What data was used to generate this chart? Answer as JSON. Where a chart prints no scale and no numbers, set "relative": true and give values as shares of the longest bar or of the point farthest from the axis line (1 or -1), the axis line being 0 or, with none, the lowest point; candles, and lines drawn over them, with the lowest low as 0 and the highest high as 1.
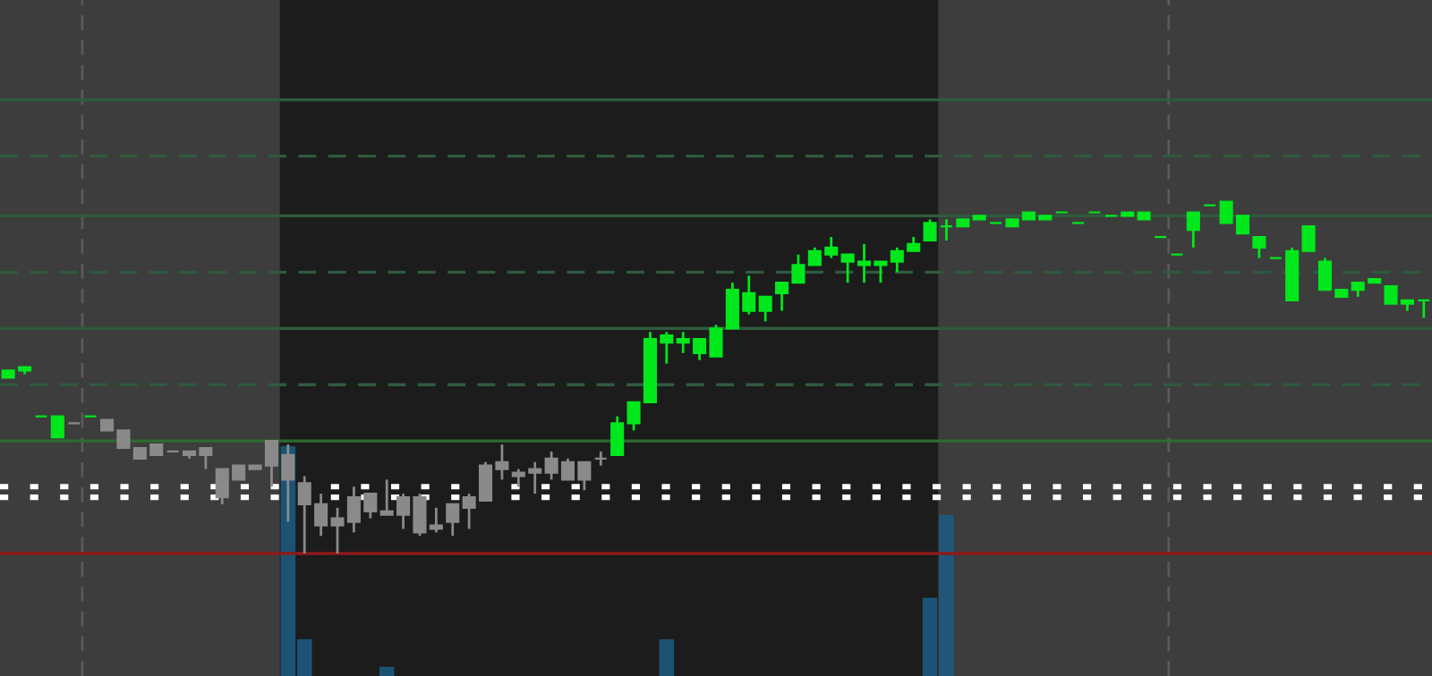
{
  "chart_data": [
    {
      "type": "candlestick",
      "relative": true,
      "categories": [
        null,
        null,
        null,
        null,
        null,
        null,
        null,
        null,
        null,
        null,
        null,
        null,
        null,
        null,
        null,
        null,
        null,
        null,
        null,
        null,
        null,
        null,
        null,
        null,
        null,
        null,
        null,
        null,
        null,
        null,
        null,
        null,
        null,
        null,
        null,
        null,
        null,
        null,
        null,
        null,
        null,
        null,
        null,
        null,
        null,
        null,
        null,
        null,
        null,
        null,
        null,
        null,
        null,
        null,
        null,
        null,
        null,
        null,
        null,
        null,
        null,
        null,
        null,
        null,
        null,
        null,
        null,
        null,
        null,
        null,
        null,
        null,
        null,
        null,
        null,
        null,
        null,
        null,
        null,
        null,
        null,
        null,
        null,
        null,
        null,
        null,
        null
      ],
      "ohlc": [
        [
          0.5,
          0.52,
          0.5,
          0.52
        ],
        [
          0.52,
          0.53,
          0.51,
          0.53
        ],
        [
          0.39,
          0.39,
          0.39,
          0.39
        ],
        [
          0.33,
          0.39,
          0.33,
          0.39
        ],
        [
          0.37,
          0.37,
          0.37,
          0.37
        ],
        [
          0.39,
          0.39,
          0.39,
          0.39
        ],
        [
          0.35,
          0.38,
          0.35,
          0.38
        ],
        [
          0.3,
          0.35,
          0.3,
          0.35
        ],
        [
          0.27,
          0.3,
          0.27,
          0.3
        ],
        [
          0.28,
          0.31,
          0.28,
          0.31
        ],
        [
          0.29,
          0.29,
          0.29,
          0.29
        ],
        [
          0.28,
          0.29,
          0.27,
          0.29
        ],
        [
          0.28,
          0.3,
          0.24,
          0.3
        ],
        [
          0.16,
          0.24,
          0.14,
          0.24
        ],
        [
          0.21,
          0.25,
          0.21,
          0.25
        ],
        [
          0.24,
          0.25,
          0.24,
          0.25
        ],
        [
          0.25,
          0.32,
          0.19,
          0.32
        ],
        [
          0.21,
          0.31,
          0.09,
          0.28
        ],
        [
          0.14,
          0.22,
          0.0,
          0.2
        ],
        [
          0.08,
          0.17,
          0.05,
          0.14
        ],
        [
          0.08,
          0.13,
          0.0,
          0.1
        ],
        [
          0.09,
          0.19,
          0.06,
          0.16
        ],
        [
          0.12,
          0.17,
          0.1,
          0.17
        ],
        [
          0.11,
          0.21,
          0.11,
          0.12
        ],
        [
          0.11,
          0.17,
          0.07,
          0.16
        ],
        [
          0.06,
          0.17,
          0.05,
          0.16
        ],
        [
          0.07,
          0.13,
          0.06,
          0.08
        ],
        [
          0.09,
          0.14,
          0.05,
          0.14
        ],
        [
          0.13,
          0.17,
          0.07,
          0.16
        ],
        [
          0.15,
          0.26,
          0.15,
          0.25
        ],
        [
          0.24,
          0.31,
          0.21,
          0.26
        ],
        [
          0.22,
          0.24,
          0.19,
          0.23
        ],
        [
          0.23,
          0.26,
          0.17,
          0.24
        ],
        [
          0.23,
          0.29,
          0.21,
          0.27
        ],
        [
          0.21,
          0.27,
          0.21,
          0.26
        ],
        [
          0.21,
          0.26,
          0.18,
          0.26
        ],
        [
          0.27,
          0.29,
          0.25,
          0.27
        ],
        [
          0.28,
          0.39,
          0.28,
          0.37
        ],
        [
          0.37,
          0.43,
          0.35,
          0.43
        ],
        [
          0.43,
          0.63,
          0.43,
          0.61
        ],
        [
          0.6,
          0.63,
          0.54,
          0.62
        ],
        [
          0.6,
          0.63,
          0.57,
          0.61
        ],
        [
          0.57,
          0.61,
          0.55,
          0.61
        ],
        [
          0.56,
          0.65,
          0.56,
          0.64
        ],
        [
          0.64,
          0.77,
          0.64,
          0.75
        ],
        [
          0.69,
          0.79,
          0.68,
          0.74
        ],
        [
          0.69,
          0.73,
          0.66,
          0.73
        ],
        [
          0.74,
          0.77,
          0.69,
          0.77
        ],
        [
          0.77,
          0.85,
          0.77,
          0.82
        ],
        [
          0.82,
          0.87,
          0.82,
          0.86
        ],
        [
          0.85,
          0.9,
          0.84,
          0.87
        ],
        [
          0.83,
          0.85,
          0.77,
          0.85
        ],
        [
          0.82,
          0.88,
          0.77,
          0.83
        ],
        [
          0.82,
          0.83,
          0.77,
          0.83
        ],
        [
          0.83,
          0.87,
          0.8,
          0.86
        ],
        [
          0.86,
          0.9,
          0.86,
          0.88
        ],
        [
          0.89,
          0.95,
          0.89,
          0.94
        ],
        [
          0.93,
          0.95,
          0.89,
          0.93
        ],
        [
          0.93,
          0.95,
          0.93,
          0.95
        ],
        [
          0.95,
          0.96,
          0.95,
          0.96
        ],
        [
          0.94,
          0.94,
          0.94,
          0.94
        ],
        [
          0.93,
          0.95,
          0.93,
          0.95
        ],
        [
          0.95,
          0.97,
          0.95,
          0.97
        ],
        [
          0.95,
          0.96,
          0.95,
          0.96
        ],
        [
          0.97,
          0.97,
          0.97,
          0.97
        ],
        [
          0.94,
          0.94,
          0.94,
          0.94
        ],
        [
          0.97,
          0.97,
          0.97,
          0.97
        ],
        [
          0.96,
          0.96,
          0.96,
          0.96
        ],
        [
          0.96,
          0.97,
          0.96,
          0.97
        ],
        [
          0.95,
          0.97,
          0.95,
          0.97
        ],
        [
          0.9,
          0.9,
          0.9,
          0.9
        ],
        [
          0.85,
          0.85,
          0.85,
          0.85
        ],
        [
          0.92,
          0.97,
          0.87,
          0.97
        ],
        [
          0.99,
          0.99,
          0.99,
          0.99
        ],
        [
          0.94,
          1.0,
          0.94,
          1.0
        ],
        [
          0.91,
          0.96,
          0.91,
          0.96
        ],
        [
          0.87,
          0.9,
          0.84,
          0.9
        ],
        [
          0.84,
          0.84,
          0.84,
          0.84
        ],
        [
          0.72,
          0.87,
          0.72,
          0.86
        ],
        [
          0.86,
          0.93,
          0.86,
          0.93
        ],
        [
          0.75,
          0.84,
          0.75,
          0.83
        ],
        [
          0.73,
          0.75,
          0.73,
          0.75
        ],
        [
          0.75,
          0.77,
          0.73,
          0.77
        ],
        [
          0.77,
          0.78,
          0.77,
          0.78
        ],
        [
          0.71,
          0.76,
          0.71,
          0.76
        ],
        [
          0.71,
          0.72,
          0.69,
          0.72
        ],
        [
          0.72,
          0.72,
          0.67,
          0.72
        ]
      ],
      "colors": [
        "#00e81c",
        "#00e81c",
        "#00e81c",
        "#00e81c",
        "#8a8a8a",
        "#00e81c",
        "#8a8a8a",
        "#8a8a8a",
        "#8a8a8a",
        "#8a8a8a",
        "#8a8a8a",
        "#8a8a8a",
        "#8a8a8a",
        "#8a8a8a",
        "#8a8a8a",
        "#8a8a8a",
        "#8a8a8a",
        "#8a8a8a",
        "#8a8a8a",
        "#8a8a8a",
        "#8a8a8a",
        "#8a8a8a",
        "#8a8a8a",
        "#8a8a8a",
        "#8a8a8a",
        "#8a8a8a",
        "#8a8a8a",
        "#8a8a8a",
        "#8a8a8a",
        "#8a8a8a",
        "#8a8a8a",
        "#8a8a8a",
        "#8a8a8a",
        "#8a8a8a",
        "#8a8a8a",
        "#8a8a8a",
        "#8a8a8a",
        "#00e81c",
        "#00e81c",
        "#00e81c",
        "#00e81c",
        "#00e81c",
        "#00e81c",
        "#00e81c",
        "#00e81c",
        "#00e81c",
        "#00e81c",
        "#00e81c",
        "#00e81c",
        "#00e81c",
        "#00e81c",
        "#00e81c",
        "#00e81c",
        "#00e81c",
        "#00e81c",
        "#00e81c",
        "#00e81c",
        "#00e81c",
        "#00e81c",
        "#00e81c",
        "#00e81c",
        "#00e81c",
        "#00e81c",
        "#00e81c",
        "#00e81c",
        "#00e81c",
        "#00e81c",
        "#00e81c",
        "#00e81c",
        "#00e81c",
        "#00e81c",
        "#00e81c",
        "#00e81c",
        "#00e81c",
        "#00e81c",
        "#00e81c",
        "#00e81c",
        "#00e81c",
        "#00e81c",
        "#00e81c",
        "#00e81c",
        "#00e81c",
        "#00e81c",
        "#00e81c",
        "#00e81c",
        "#00e81c",
        "#00e81c"
      ],
      "ref_lines": [
        {
          "axis": "y",
          "value": 1.29,
          "color": "#2f5a3e",
          "line_style": "solid"
        },
        {
          "axis": "y",
          "value": 1.13,
          "color": "#2f5a3e",
          "line_style": "dashed"
        },
        {
          "axis": "y",
          "value": 0.96,
          "color": "#2f5a3e",
          "line_style": "solid"
        },
        {
          "axis": "y",
          "value": 0.8,
          "color": "#2f5a3e",
          "line_style": "dashed"
        },
        {
          "axis": "y",
          "value": 0.64,
          "color": "#2f5a3e",
          "line_style": "solid"
        },
        {
          "axis": "y",
          "value": 0.48,
          "color": "#2f5a3e",
          "line_style": "dashed"
        },
        {
          "axis": "y",
          "value": 0.32,
          "color": "#2f6a2f",
          "line_style": "solid"
        },
        {
          "axis": "y",
          "value": 0.0,
          "color": "#8b1a1a",
          "line_style": "solid"
        },
        {
          "axis": "y",
          "value": 0.19,
          "color": "#ffffff",
          "line_style": "dotted"
        },
        {
          "axis": "y",
          "value": 0.16,
          "color": "#ffffff",
          "line_style": "dotted"
        }
      ]
    },
    {
      "type": "bar",
      "relative": true,
      "color": "#1d5a80",
      "categories": [
        null,
        null,
        null,
        null,
        null,
        null,
        null,
        null,
        null,
        null,
        null,
        null,
        null,
        null,
        null,
        null,
        null,
        null,
        null,
        null,
        null,
        null,
        null,
        null,
        null,
        null,
        null,
        null,
        null,
        null,
        null,
        null,
        null,
        null,
        null,
        null,
        null,
        null,
        null,
        null,
        null,
        null,
        null,
        null,
        null,
        null,
        null,
        null,
        null,
        null,
        null,
        null,
        null,
        null,
        null,
        null,
        null,
        null,
        null,
        null,
        null,
        null,
        null,
        null,
        null,
        null,
        null,
        null,
        null,
        null,
        null,
        null,
        null,
        null,
        null,
        null,
        null,
        null,
        null,
        null,
        null,
        null,
        null,
        null,
        null,
        null,
        null
      ],
      "values": [
        null,
        null,
        null,
        null,
        null,
        null,
        null,
        null,
        null,
        null,
        null,
        null,
        null,
        null,
        null,
        null,
        null,
        1.0,
        0.16,
        null,
        null,
        null,
        null,
        0.04,
        null,
        null,
        null,
        null,
        null,
        null,
        null,
        null,
        null,
        null,
        null,
        null,
        null,
        null,
        null,
        null,
        0.16,
        null,
        null,
        null,
        null,
        null,
        null,
        null,
        null,
        null,
        null,
        null,
        null,
        null,
        null,
        null,
        0.34,
        0.7,
        null,
        null,
        null,
        null,
        null,
        null,
        null,
        null,
        null,
        null,
        null,
        null,
        null,
        null,
        null,
        null,
        null,
        null,
        null,
        null,
        null,
        null,
        null,
        null,
        null,
        null,
        null,
        null,
        null
      ]
    }
  ]
}
